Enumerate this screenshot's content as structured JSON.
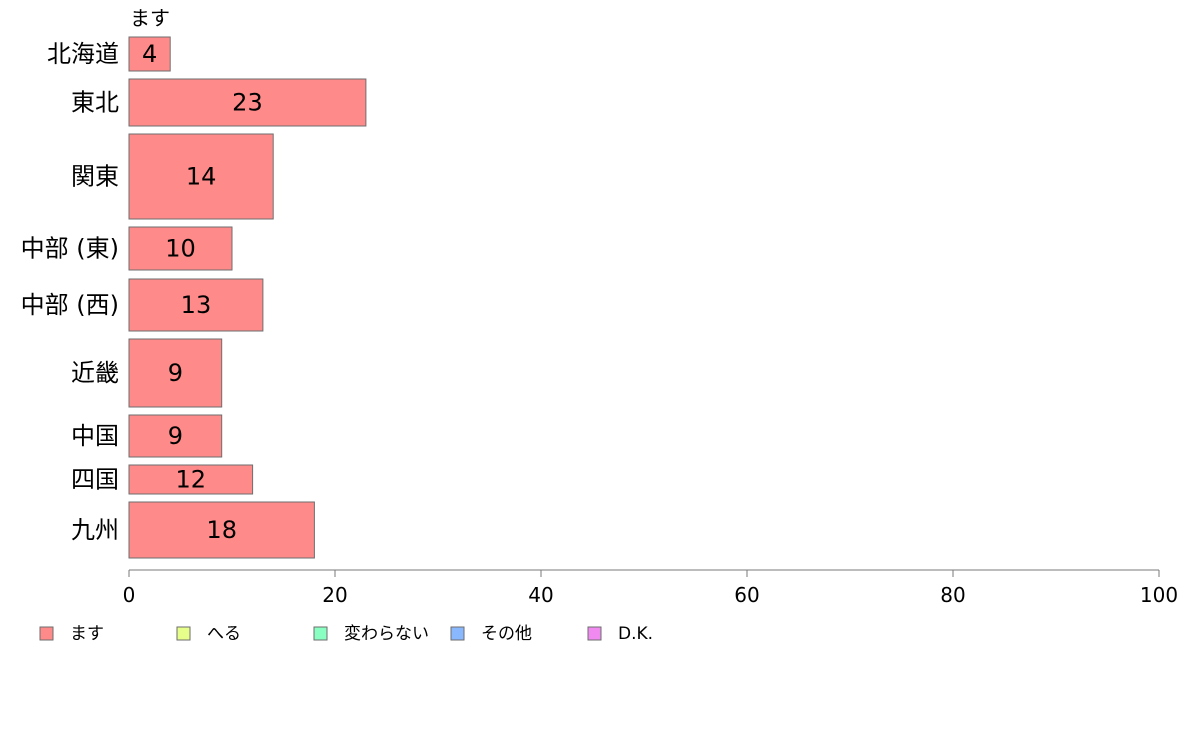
{
  "chart_data": {
    "type": "bar",
    "orientation": "horizontal",
    "stacked": true,
    "column_caption": "ます",
    "categories": [
      "北海道",
      "東北",
      "関東",
      "中部 (東)",
      "中部 (西)",
      "近畿",
      "中国",
      "四国",
      "九州"
    ],
    "series": [
      {
        "name": "ます",
        "color": "#ff8a8a",
        "values": [
          4,
          23,
          14,
          10,
          13,
          9,
          9,
          12,
          18
        ]
      },
      {
        "name": "へる",
        "color": "#e6ff8a",
        "values": [
          0,
          0,
          0,
          0,
          0,
          0,
          0,
          0,
          0
        ]
      },
      {
        "name": "変わらない",
        "color": "#8affc2",
        "values": [
          0,
          0,
          0,
          0,
          0,
          0,
          0,
          0,
          0
        ]
      },
      {
        "name": "その他",
        "color": "#8ab8ff",
        "values": [
          0,
          0,
          0,
          0,
          0,
          0,
          0,
          0,
          0
        ]
      },
      {
        "name": "D.K.",
        "color": "#f08af0",
        "values": [
          0,
          0,
          0,
          0,
          0,
          0,
          0,
          0,
          0
        ]
      }
    ],
    "xlim": [
      0,
      100
    ],
    "xticks": [
      0,
      20,
      40,
      60,
      80,
      100
    ],
    "legend_position": "bottom-left",
    "grid": false
  }
}
